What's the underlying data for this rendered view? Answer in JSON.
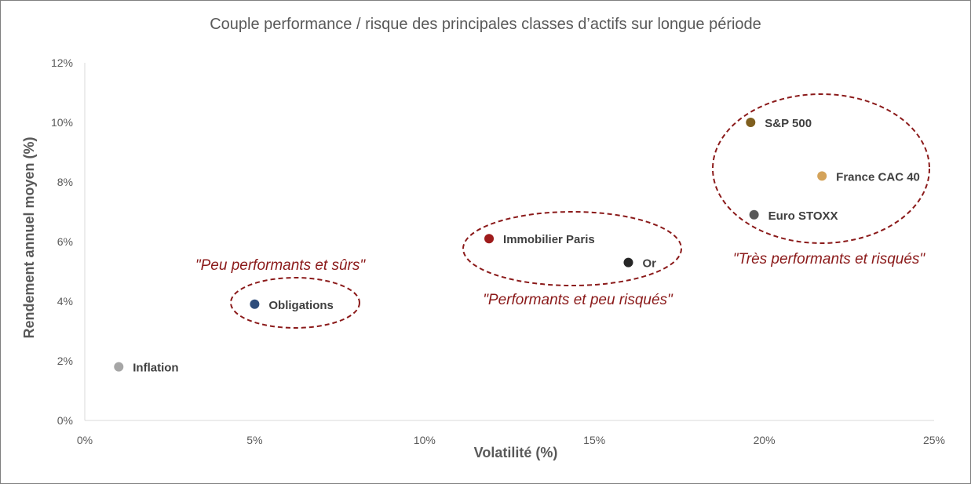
{
  "chart_data": {
    "type": "scatter",
    "title": "Couple performance / risque des principales classes d’actifs sur longue période",
    "xlabel": "Volatilité (%)",
    "ylabel": "Rendement annuel moyen (%)",
    "xlim": [
      0,
      25
    ],
    "ylim": [
      0,
      12
    ],
    "x_ticks": [
      "0%",
      "5%",
      "10%",
      "15%",
      "20%",
      "25%"
    ],
    "y_ticks": [
      "0%",
      "2%",
      "4%",
      "6%",
      "8%",
      "10%",
      "12%"
    ],
    "grid": false,
    "points": [
      {
        "label": "Inflation",
        "x": 1.0,
        "y": 1.8,
        "color": "#a6a6a6"
      },
      {
        "label": "Obligations",
        "x": 5.0,
        "y": 3.9,
        "color": "#2e4d7b"
      },
      {
        "label": "Immobilier Paris",
        "x": 11.9,
        "y": 6.1,
        "color": "#9e1b1b"
      },
      {
        "label": "Or",
        "x": 16.0,
        "y": 5.3,
        "color": "#262626"
      },
      {
        "label": "S&P 500",
        "x": 19.6,
        "y": 10.0,
        "color": "#7f5f1f"
      },
      {
        "label": "France CAC 40",
        "x": 21.7,
        "y": 8.2,
        "color": "#d4a35a"
      },
      {
        "label": "Euro STOXX",
        "x": 19.7,
        "y": 6.9,
        "color": "#595959"
      }
    ],
    "annotations": [
      {
        "text": "\"Peu performants et sûrs\""
      },
      {
        "text": "\"Performants et peu risqués\""
      },
      {
        "text": "\"Très performants et risqués\""
      }
    ],
    "annotation_color": "#8b1a1a"
  }
}
